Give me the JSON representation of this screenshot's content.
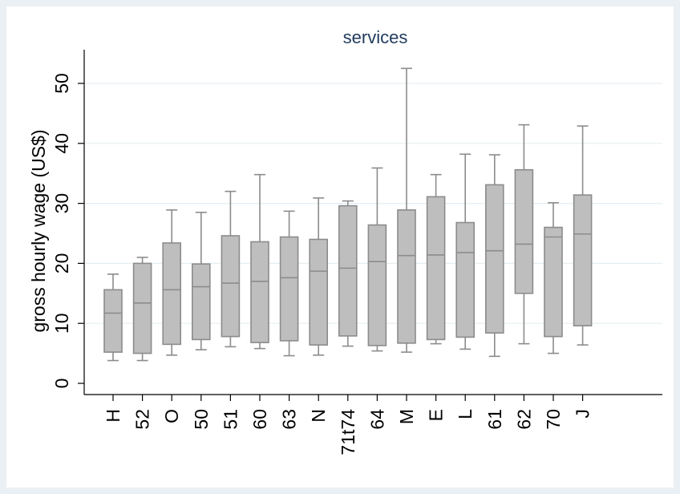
{
  "chart_data": {
    "type": "box",
    "title": "services",
    "xlabel": "",
    "ylabel": "gross hourly wage (US$)",
    "ylim": [
      0,
      55
    ],
    "yticks": [
      0,
      10,
      20,
      30,
      40,
      50
    ],
    "grid": true,
    "legend": "none",
    "colors": {
      "box_fill": "#bebebe",
      "box_stroke": "#8c8c8c",
      "grid": "#e6eef2",
      "axis": "#000000",
      "title": "#1f3b5c",
      "frame": "#eaf0f4"
    },
    "categories": [
      "H",
      "52",
      "O",
      "50",
      "51",
      "60",
      "63",
      "N",
      "71t74",
      "64",
      "M",
      "E",
      "L",
      "61",
      "62",
      "70",
      "J"
    ],
    "boxes": [
      {
        "category": "H",
        "whisker_low": 3.8,
        "q1": 5.2,
        "median": 11.7,
        "q3": 15.6,
        "whisker_high": 18.2
      },
      {
        "category": "52",
        "whisker_low": 3.8,
        "q1": 5.0,
        "median": 13.4,
        "q3": 20.0,
        "whisker_high": 21.0
      },
      {
        "category": "O",
        "whisker_low": 4.7,
        "q1": 6.5,
        "median": 15.6,
        "q3": 23.4,
        "whisker_high": 28.9
      },
      {
        "category": "50",
        "whisker_low": 5.6,
        "q1": 7.3,
        "median": 16.1,
        "q3": 19.9,
        "whisker_high": 28.5
      },
      {
        "category": "51",
        "whisker_low": 6.1,
        "q1": 7.8,
        "median": 16.7,
        "q3": 24.6,
        "whisker_high": 32.0
      },
      {
        "category": "60",
        "whisker_low": 5.8,
        "q1": 6.8,
        "median": 17.0,
        "q3": 23.6,
        "whisker_high": 34.8
      },
      {
        "category": "63",
        "whisker_low": 4.6,
        "q1": 7.1,
        "median": 17.6,
        "q3": 24.4,
        "whisker_high": 28.7
      },
      {
        "category": "N",
        "whisker_low": 4.7,
        "q1": 6.4,
        "median": 18.7,
        "q3": 24.0,
        "whisker_high": 30.9
      },
      {
        "category": "71t74",
        "whisker_low": 6.2,
        "q1": 7.9,
        "median": 19.2,
        "q3": 29.6,
        "whisker_high": 30.4
      },
      {
        "category": "64",
        "whisker_low": 5.4,
        "q1": 6.3,
        "median": 20.3,
        "q3": 26.4,
        "whisker_high": 35.9
      },
      {
        "category": "M",
        "whisker_low": 5.2,
        "q1": 6.7,
        "median": 21.3,
        "q3": 28.9,
        "whisker_high": 52.5
      },
      {
        "category": "E",
        "whisker_low": 6.6,
        "q1": 7.3,
        "median": 21.4,
        "q3": 31.1,
        "whisker_high": 34.8
      },
      {
        "category": "L",
        "whisker_low": 5.7,
        "q1": 7.7,
        "median": 21.8,
        "q3": 26.8,
        "whisker_high": 38.2
      },
      {
        "category": "61",
        "whisker_low": 4.5,
        "q1": 8.4,
        "median": 22.1,
        "q3": 33.1,
        "whisker_high": 38.1
      },
      {
        "category": "62",
        "whisker_low": 6.6,
        "q1": 15.0,
        "median": 23.2,
        "q3": 35.6,
        "whisker_high": 43.1
      },
      {
        "category": "70",
        "whisker_low": 5.0,
        "q1": 7.8,
        "median": 24.4,
        "q3": 26.0,
        "whisker_high": 30.1
      },
      {
        "category": "J",
        "whisker_low": 6.4,
        "q1": 9.6,
        "median": 24.9,
        "q3": 31.4,
        "whisker_high": 42.9
      }
    ]
  }
}
